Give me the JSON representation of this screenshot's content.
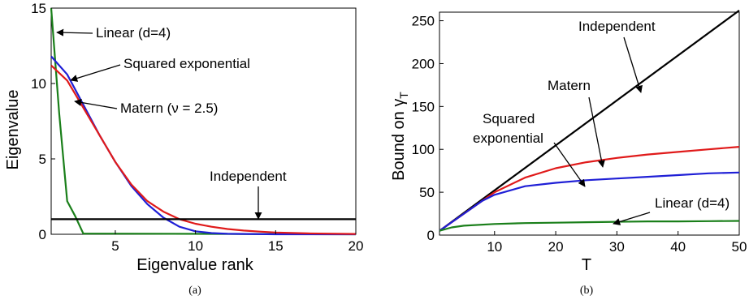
{
  "chart_data": [
    {
      "type": "line",
      "caption": "(a)",
      "xlabel": "Eigenvalue rank",
      "ylabel": "Eigenvalue",
      "xlim": [
        1,
        20
      ],
      "ylim": [
        0,
        15
      ],
      "xticks": [
        "5",
        "10",
        "15",
        "20"
      ],
      "yticks": [
        "0",
        "5",
        "10",
        "15"
      ],
      "grid": false,
      "series": [
        {
          "name": "Linear (d=4)",
          "color": "#1a7f1a",
          "x": [
            1,
            1.5,
            2,
            2.5,
            3,
            20
          ],
          "y": [
            15,
            8,
            2.2,
            1.2,
            0.05,
            0
          ]
        },
        {
          "name": "Squared exponential",
          "color": "#1f1fd6",
          "x": [
            1,
            2,
            3,
            4,
            5,
            6,
            7,
            8,
            9,
            10,
            11,
            12,
            15,
            20
          ],
          "y": [
            11.8,
            10.6,
            8.6,
            6.6,
            4.8,
            3.2,
            2.0,
            1.1,
            0.5,
            0.2,
            0.08,
            0.03,
            0,
            0
          ]
        },
        {
          "name": "Matern (ν = 2.5)",
          "color": "#e01a1a",
          "x": [
            1,
            2,
            3,
            4,
            5,
            6,
            7,
            8,
            9,
            10,
            11,
            12,
            13,
            14,
            15,
            17,
            20
          ],
          "y": [
            11.2,
            10.2,
            8.4,
            6.6,
            4.8,
            3.3,
            2.2,
            1.5,
            1.0,
            0.7,
            0.5,
            0.35,
            0.25,
            0.18,
            0.12,
            0.06,
            0.02
          ]
        },
        {
          "name": "Independent",
          "color": "#000000",
          "x": [
            1,
            20
          ],
          "y": [
            1,
            1
          ]
        }
      ]
    },
    {
      "type": "line",
      "caption": "(b)",
      "xlabel": "T",
      "ylabel": "Bound on γ",
      "ylabel_sub": "T",
      "xlim": [
        1,
        50
      ],
      "ylim": [
        0,
        260
      ],
      "xticks": [
        "10",
        "20",
        "30",
        "40",
        "50"
      ],
      "yticks": [
        "0",
        "50",
        "100",
        "150",
        "200",
        "250"
      ],
      "grid": false,
      "series": [
        {
          "name": "Independent",
          "color": "#000000",
          "x": [
            1,
            50
          ],
          "y": [
            5,
            262
          ]
        },
        {
          "name": "Matern",
          "color": "#e01a1a",
          "x": [
            1,
            5,
            8,
            10,
            15,
            20,
            25,
            30,
            35,
            40,
            45,
            50
          ],
          "y": [
            5,
            25,
            40,
            50,
            67,
            78,
            85,
            90,
            94,
            97,
            100,
            103
          ]
        },
        {
          "name": "Squared exponential",
          "color": "#1f1fd6",
          "x": [
            1,
            5,
            8,
            10,
            15,
            20,
            25,
            30,
            35,
            40,
            45,
            50
          ],
          "y": [
            5,
            25,
            40,
            47,
            57,
            61,
            64,
            66,
            68,
            70,
            72,
            73
          ]
        },
        {
          "name": "Linear (d=4)",
          "color": "#1a7f1a",
          "x": [
            1,
            3,
            5,
            10,
            15,
            20,
            25,
            30,
            35,
            40,
            45,
            50
          ],
          "y": [
            5,
            9,
            11,
            13,
            14,
            14.5,
            15,
            15.5,
            16,
            16,
            16.3,
            16.5
          ]
        }
      ]
    }
  ],
  "annotations_a": [
    {
      "text": "Linear (d=4)"
    },
    {
      "text": "Squared exponential"
    },
    {
      "text": "Matern (ν = 2.5)"
    },
    {
      "text": "Independent"
    }
  ],
  "annotations_b": [
    {
      "text": "Independent"
    },
    {
      "text": "Matern"
    },
    {
      "text": "Squared"
    },
    {
      "text": "exponential"
    },
    {
      "text": "Linear (d=4)"
    }
  ]
}
